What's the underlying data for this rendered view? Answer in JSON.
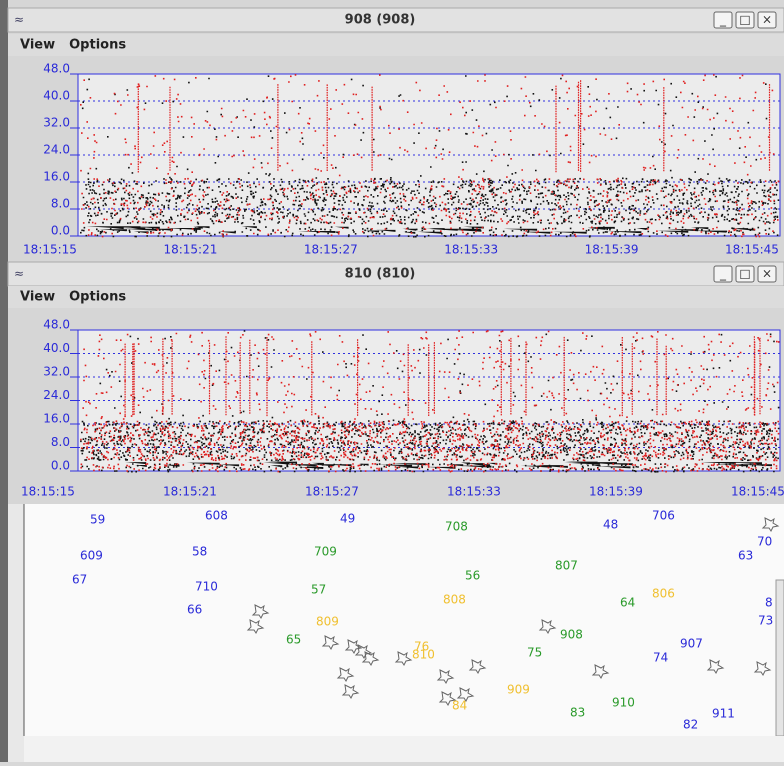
{
  "windows": [
    {
      "title": "908 (908)",
      "menu": [
        "View",
        "Options"
      ],
      "ylim": [
        0,
        48
      ],
      "yticks": [
        {
          "value": 48,
          "label": "48.0"
        },
        {
          "value": 40,
          "label": "40.0"
        },
        {
          "value": 32,
          "label": "32.0"
        },
        {
          "value": 24,
          "label": "24.0"
        },
        {
          "value": 16,
          "label": "16.0"
        },
        {
          "value": 8,
          "label": "8.0"
        },
        {
          "value": 0,
          "label": "0.0"
        }
      ],
      "xticks": [
        "18:15:15",
        "18:15:21",
        "18:15:27",
        "18:15:33",
        "18:15:39",
        "18:15:45"
      ]
    },
    {
      "title": "810 (810)",
      "menu": [
        "View",
        "Options"
      ],
      "ylim": [
        0,
        48
      ],
      "yticks": [
        {
          "value": 48,
          "label": "48.0"
        },
        {
          "value": 40,
          "label": "40.0"
        },
        {
          "value": 32,
          "label": "32.0"
        },
        {
          "value": 24,
          "label": "24.0"
        },
        {
          "value": 16,
          "label": "16.0"
        },
        {
          "value": 8,
          "label": "8.0"
        },
        {
          "value": 0,
          "label": "0.0"
        }
      ],
      "xticks": [
        "18:15:15",
        "18:15:21",
        "18:15:27",
        "18:15:33",
        "18:15:39",
        "18:15:45"
      ]
    }
  ],
  "map_labels": [
    {
      "text": "59",
      "color": "#2a2ad8"
    },
    {
      "text": "608",
      "color": "#2a2ad8"
    },
    {
      "text": "49",
      "color": "#2a2ad8"
    },
    {
      "text": "708",
      "color": "#2a9a2a"
    },
    {
      "text": "48",
      "color": "#2a2ad8"
    },
    {
      "text": "706",
      "color": "#2a2ad8"
    },
    {
      "text": "609",
      "color": "#2a2ad8"
    },
    {
      "text": "58",
      "color": "#2a2ad8"
    },
    {
      "text": "709",
      "color": "#2a9a2a"
    },
    {
      "text": "807",
      "color": "#2a9a2a"
    },
    {
      "text": "63",
      "color": "#2a2ad8"
    },
    {
      "text": "70",
      "color": "#2a2ad8"
    },
    {
      "text": "67",
      "color": "#2a2ad8"
    },
    {
      "text": "710",
      "color": "#2a2ad8"
    },
    {
      "text": "56",
      "color": "#2a9a2a"
    },
    {
      "text": "57",
      "color": "#2a9a2a"
    },
    {
      "text": "808",
      "color": "#f0c030"
    },
    {
      "text": "806",
      "color": "#f0c030"
    },
    {
      "text": "64",
      "color": "#2a9a2a"
    },
    {
      "text": "66",
      "color": "#2a2ad8"
    },
    {
      "text": "8",
      "color": "#2a2ad8"
    },
    {
      "text": "73",
      "color": "#2a2ad8"
    },
    {
      "text": "809",
      "color": "#f0c030"
    },
    {
      "text": "908",
      "color": "#2a9a2a"
    },
    {
      "text": "65",
      "color": "#2a9a2a"
    },
    {
      "text": "76",
      "color": "#f0c030"
    },
    {
      "text": "810",
      "color": "#f0c030"
    },
    {
      "text": "75",
      "color": "#2a9a2a"
    },
    {
      "text": "907",
      "color": "#2a2ad8"
    },
    {
      "text": "74",
      "color": "#2a2ad8"
    },
    {
      "text": "909",
      "color": "#f0c030"
    },
    {
      "text": "910",
      "color": "#2a9a2a"
    },
    {
      "text": "84",
      "color": "#f0c030"
    },
    {
      "text": "83",
      "color": "#2a9a2a"
    },
    {
      "text": "911",
      "color": "#2a2ad8"
    },
    {
      "text": "82",
      "color": "#2a2ad8"
    }
  ]
}
